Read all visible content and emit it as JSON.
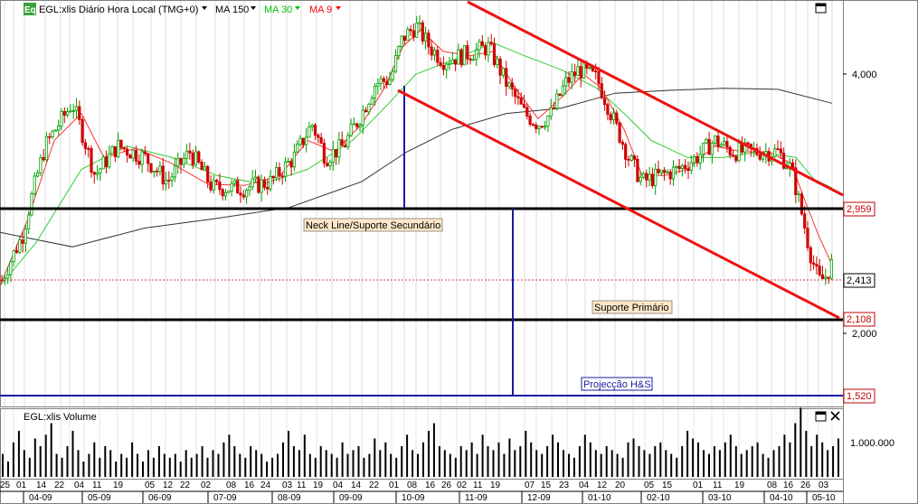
{
  "window": {
    "logo_text": "Eq",
    "title": "EGL:xlis Diário Hora Local (TMG+0)",
    "menu_icon": "dropdown-triangle-icon",
    "maximize_icon": "maximize-icon",
    "close_icon": "close-icon"
  },
  "indicators": [
    {
      "label": "MA 150",
      "color": "#000000"
    },
    {
      "label": "MA 30",
      "color": "#00c000"
    },
    {
      "label": "MA 9",
      "color": "#ff0000"
    }
  ],
  "annotations": {
    "neck_line": "Neck Line/Suporte Secundário",
    "primary_support": "Suporte Primário",
    "projection": "Projecção H&S"
  },
  "volume_panel": {
    "title": "EGL:xlis Volume",
    "axis_label": "1.000.000"
  },
  "price_axis": {
    "ticks": [
      "4,000",
      "2,000"
    ],
    "levels": [
      {
        "label": "2,959",
        "color": "#c00000"
      },
      {
        "label": "2,413",
        "color": "#000000"
      },
      {
        "label": "2,108",
        "color": "#c00000"
      },
      {
        "label": "1,520",
        "color": "#c00000"
      }
    ]
  },
  "date_axis": {
    "days": [
      "25",
      "01",
      "14",
      "22",
      "04",
      "11",
      "19",
      "05",
      "12",
      "22",
      "02",
      "08",
      "16",
      "24",
      "03",
      "11",
      "19",
      "04",
      "14",
      "22",
      "01",
      "08",
      "16",
      "26",
      "02",
      "11",
      "19",
      "07",
      "15",
      "23",
      "04",
      "12",
      "20",
      "05",
      "15",
      "01",
      "11",
      "19",
      "08",
      "16",
      "26",
      "03"
    ],
    "months": [
      "04-09",
      "05-09",
      "06-09",
      "07-09",
      "08-09",
      "09-09",
      "10-09",
      "11-09",
      "12-09",
      "01-10",
      "02-10",
      "03-10",
      "04-10",
      "05-10"
    ]
  },
  "colors": {
    "up_candle": "#00a000",
    "down_candle": "#d00000",
    "trend_channel": "#ee1111",
    "support_line": "#000000",
    "projection_line": "#1a1aa0",
    "label_bg": "#fde7c8"
  },
  "chart_data": {
    "type": "candlestick",
    "instrument": "EGL:xlis",
    "key_prices": {
      "max_close": 4.5,
      "neck_line_secondary_support": 2.959,
      "last_price": 2.413,
      "primary_support": 2.108,
      "head_and_shoulders_projection": 1.52
    },
    "close_series": [
      [
        0,
        2.28
      ],
      [
        25,
        2.6
      ],
      [
        50,
        3.3
      ],
      [
        80,
        3.7
      ],
      [
        105,
        3.05
      ],
      [
        130,
        3.3
      ],
      [
        160,
        3.2
      ],
      [
        185,
        3.0
      ],
      [
        210,
        3.25
      ],
      [
        235,
        2.95
      ],
      [
        270,
        2.95
      ],
      [
        300,
        3.0
      ],
      [
        325,
        3.2
      ],
      [
        345,
        3.5
      ],
      [
        360,
        3.2
      ],
      [
        380,
        3.3
      ],
      [
        400,
        3.6
      ],
      [
        415,
        3.9
      ],
      [
        432,
        3.95
      ],
      [
        445,
        4.4
      ],
      [
        460,
        4.55
      ],
      [
        475,
        4.3
      ],
      [
        490,
        4.15
      ],
      [
        510,
        4.2
      ],
      [
        540,
        4.3
      ],
      [
        560,
        3.9
      ],
      [
        580,
        3.6
      ],
      [
        595,
        3.5
      ],
      [
        610,
        3.6
      ],
      [
        625,
        3.9
      ],
      [
        640,
        4.05
      ],
      [
        660,
        3.95
      ],
      [
        680,
        3.5
      ],
      [
        695,
        3.2
      ],
      [
        710,
        3.0
      ],
      [
        730,
        3.05
      ],
      [
        750,
        3.1
      ],
      [
        770,
        3.2
      ],
      [
        790,
        3.35
      ],
      [
        810,
        3.25
      ],
      [
        830,
        3.25
      ],
      [
        860,
        3.25
      ],
      [
        875,
        3.1
      ],
      [
        885,
        2.8
      ],
      [
        895,
        2.5
      ],
      [
        905,
        2.3
      ],
      [
        912,
        2.32
      ],
      [
        920,
        2.41
      ]
    ],
    "ma150": [
      [
        0,
        2.62
      ],
      [
        80,
        2.52
      ],
      [
        160,
        2.65
      ],
      [
        240,
        2.72
      ],
      [
        320,
        2.8
      ],
      [
        400,
        3.0
      ],
      [
        450,
        3.25
      ],
      [
        500,
        3.45
      ],
      [
        560,
        3.6
      ],
      [
        620,
        3.65
      ],
      [
        680,
        3.8
      ],
      [
        740,
        3.83
      ],
      [
        800,
        3.85
      ],
      [
        860,
        3.84
      ],
      [
        920,
        3.7
      ]
    ],
    "ma30": [
      [
        0,
        2.27
      ],
      [
        40,
        2.55
      ],
      [
        90,
        3.1
      ],
      [
        140,
        3.3
      ],
      [
        190,
        3.2
      ],
      [
        240,
        3.05
      ],
      [
        290,
        2.98
      ],
      [
        340,
        3.1
      ],
      [
        390,
        3.35
      ],
      [
        430,
        3.7
      ],
      [
        460,
        4.0
      ],
      [
        500,
        4.15
      ],
      [
        545,
        4.35
      ],
      [
        580,
        4.2
      ],
      [
        620,
        4.05
      ],
      [
        660,
        3.85
      ],
      [
        690,
        3.6
      ],
      [
        720,
        3.35
      ],
      [
        760,
        3.2
      ],
      [
        800,
        3.2
      ],
      [
        840,
        3.25
      ],
      [
        880,
        3.2
      ],
      [
        900,
        3.02
      ],
      [
        920,
        2.95
      ]
    ],
    "ma9": [
      [
        0,
        2.27
      ],
      [
        30,
        2.7
      ],
      [
        60,
        3.35
      ],
      [
        90,
        3.6
      ],
      [
        115,
        3.2
      ],
      [
        150,
        3.28
      ],
      [
        190,
        3.15
      ],
      [
        230,
        2.98
      ],
      [
        270,
        2.97
      ],
      [
        310,
        3.05
      ],
      [
        340,
        3.35
      ],
      [
        370,
        3.25
      ],
      [
        400,
        3.5
      ],
      [
        425,
        3.85
      ],
      [
        445,
        4.3
      ],
      [
        465,
        4.5
      ],
      [
        490,
        4.25
      ],
      [
        520,
        4.2
      ],
      [
        545,
        4.25
      ],
      [
        570,
        3.85
      ],
      [
        595,
        3.55
      ],
      [
        620,
        3.75
      ],
      [
        645,
        4.0
      ],
      [
        665,
        3.85
      ],
      [
        690,
        3.45
      ],
      [
        710,
        3.05
      ],
      [
        735,
        3.05
      ],
      [
        760,
        3.1
      ],
      [
        790,
        3.3
      ],
      [
        820,
        3.25
      ],
      [
        850,
        3.25
      ],
      [
        875,
        3.15
      ],
      [
        890,
        2.85
      ],
      [
        905,
        2.6
      ],
      [
        920,
        2.4
      ]
    ],
    "volume": [
      30,
      20,
      45,
      60,
      35,
      25,
      50,
      40,
      55,
      70,
      30,
      25,
      40,
      60,
      35,
      20,
      30,
      45,
      25,
      40,
      35,
      20,
      30,
      25,
      45,
      30,
      20,
      35,
      25,
      40,
      30,
      25,
      30,
      20,
      35,
      25,
      30,
      40,
      25,
      35,
      30,
      45,
      55,
      40,
      30,
      25,
      40,
      35,
      30,
      20,
      25,
      30,
      45,
      60,
      40,
      35,
      55,
      30,
      25,
      40,
      35,
      30,
      25,
      45,
      30,
      35,
      40,
      25,
      30,
      50,
      35,
      45,
      30,
      25,
      40,
      55,
      35,
      30,
      45,
      60,
      70,
      40,
      35,
      30,
      25,
      40,
      35,
      45,
      30,
      55,
      40,
      35,
      45,
      30,
      50,
      35,
      40,
      60,
      45,
      35,
      30,
      40,
      55,
      45,
      35,
      30,
      25,
      40,
      55,
      45,
      35,
      30,
      40,
      35,
      30,
      25,
      45,
      50,
      40,
      35,
      30,
      40,
      45,
      35,
      30,
      25,
      40,
      60,
      50,
      45,
      35,
      30,
      40,
      35,
      45,
      55,
      40,
      30,
      35,
      40,
      45,
      30,
      25,
      35,
      40,
      55,
      45,
      70,
      90,
      60,
      40,
      55,
      45,
      35,
      40,
      50
    ],
    "trend_channel_upper": [
      [
        517,
        4.8
      ],
      [
        932,
        2.85
      ]
    ],
    "trend_channel_lower": [
      [
        440,
        3.85
      ],
      [
        928,
        2.1
      ]
    ],
    "xlabel": "",
    "ylabel": "",
    "legend": "top-left"
  }
}
